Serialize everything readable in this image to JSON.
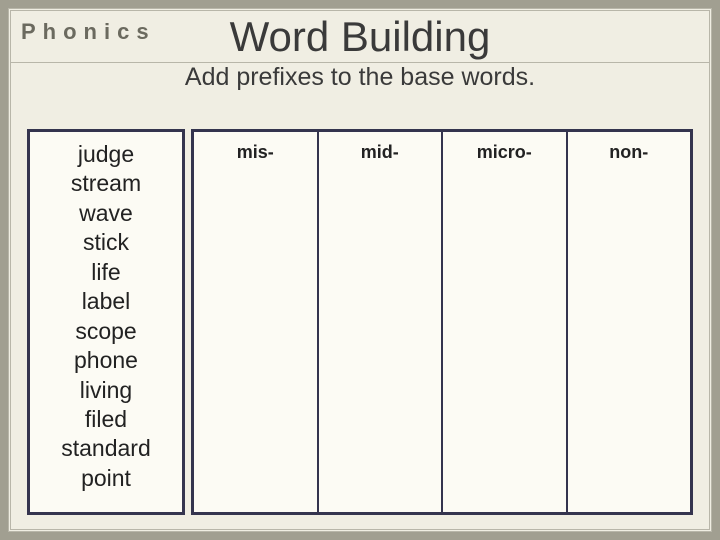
{
  "section_label": "Phonics",
  "title": "Word Building",
  "subtitle": "Add prefixes to the base words.",
  "base_words": [
    "judge",
    "stream",
    "wave",
    "stick",
    "life",
    "label",
    "scope",
    "phone",
    "living",
    "filed",
    "standard",
    "point"
  ],
  "prefixes": [
    "mis-",
    "mid-",
    "micro-",
    "non-"
  ],
  "colors": {
    "page_bg": "#f0eee3",
    "outer_bg": "#a19f91",
    "box_bg": "#fcfbf4",
    "box_border": "#34344e",
    "label_color": "#6b6a5f",
    "text_color": "#3a3a3a"
  },
  "fonts": {
    "title_size": 42,
    "subtitle_size": 25,
    "label_size": 22,
    "word_size": 23,
    "prefix_size": 18
  }
}
